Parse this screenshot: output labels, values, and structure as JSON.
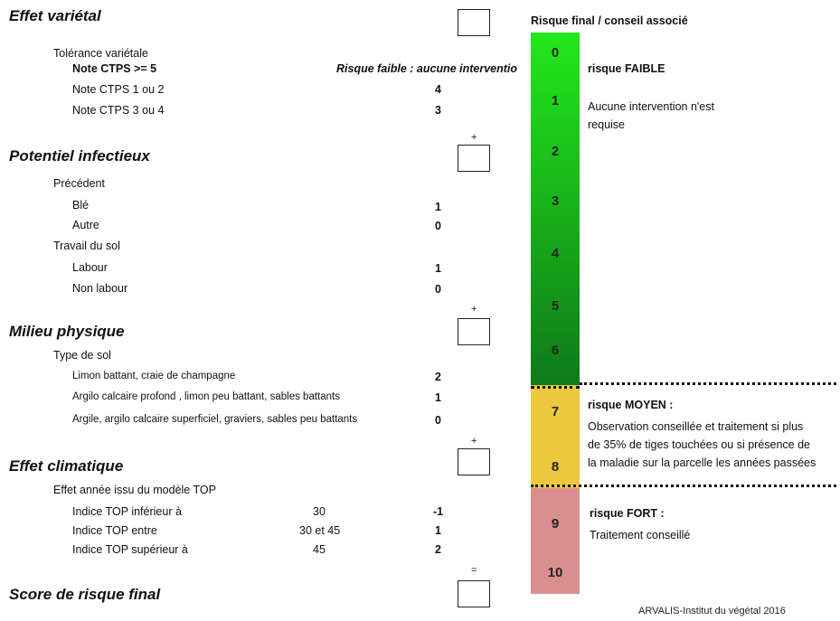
{
  "sections": {
    "varietal": {
      "title": "Effet variétal",
      "subtitle": "Tolérance variétale",
      "items": [
        {
          "label": "Note CTPS >= 5",
          "value": "",
          "note": "Risque faible : aucune interventio"
        },
        {
          "label": "Note CTPS 1 ou 2",
          "value": "4"
        },
        {
          "label": "Note CTPS 3 ou 4",
          "value": "3"
        }
      ]
    },
    "infectious": {
      "title": "Potentiel infectieux",
      "groups": [
        {
          "subtitle": "Précédent",
          "items": [
            {
              "label": "Blé",
              "value": "1"
            },
            {
              "label": "Autre",
              "value": "0"
            }
          ]
        },
        {
          "subtitle": "Travail du sol",
          "items": [
            {
              "label": "Labour",
              "value": "1"
            },
            {
              "label": "Non labour",
              "value": "0"
            }
          ]
        }
      ]
    },
    "physical": {
      "title": "Milieu physique",
      "subtitle": "Type de sol",
      "items": [
        {
          "label": "Limon  battant, craie de champagne",
          "value": "2"
        },
        {
          "label": "Argilo calcaire profond , limon peu battant, sables battants",
          "value": "1"
        },
        {
          "label": "Argile, argilo calcaire superficiel, graviers, sables peu battants",
          "value": "0"
        }
      ]
    },
    "climatic": {
      "title": "Effet climatique",
      "subtitle": "Effet année issu du modèle TOP",
      "items": [
        {
          "label": "Indice TOP inférieur à",
          "threshold": "30",
          "value": "-1"
        },
        {
          "label": "Indice TOP entre",
          "threshold": "30 et 45",
          "value": "1"
        },
        {
          "label": "Indice TOP supérieur à",
          "threshold": "45",
          "value": "2"
        }
      ]
    },
    "final": {
      "title": "Score de risque final"
    }
  },
  "operators": {
    "plus": "+",
    "equals": "="
  },
  "risk_scale": {
    "header": "Risque final /  conseil associé",
    "levels": [
      "0",
      "1",
      "2",
      "3",
      "4",
      "5",
      "6",
      "7",
      "8",
      "9",
      "10"
    ],
    "colors": {
      "green_top": "#22e81b",
      "green_bottom": "#0f7a1a",
      "yellow": "#ecc83e",
      "red": "#d8908f"
    },
    "low": {
      "title": "risque FAIBLE",
      "text_line1": "Aucune intervention n'est",
      "text_line2": "requise"
    },
    "medium": {
      "title": "risque MOYEN :",
      "text_line1": "Observation conseillée et traitement si plus",
      "text_line2": "de 35% de tiges touchées ou si présence de",
      "text_line3": "la maladie sur la parcelle les années passées"
    },
    "high": {
      "title": "risque FORT :",
      "text_line1": "Traitement conseillé"
    }
  },
  "footer": "ARVALIS-Institut du végétal 2016"
}
